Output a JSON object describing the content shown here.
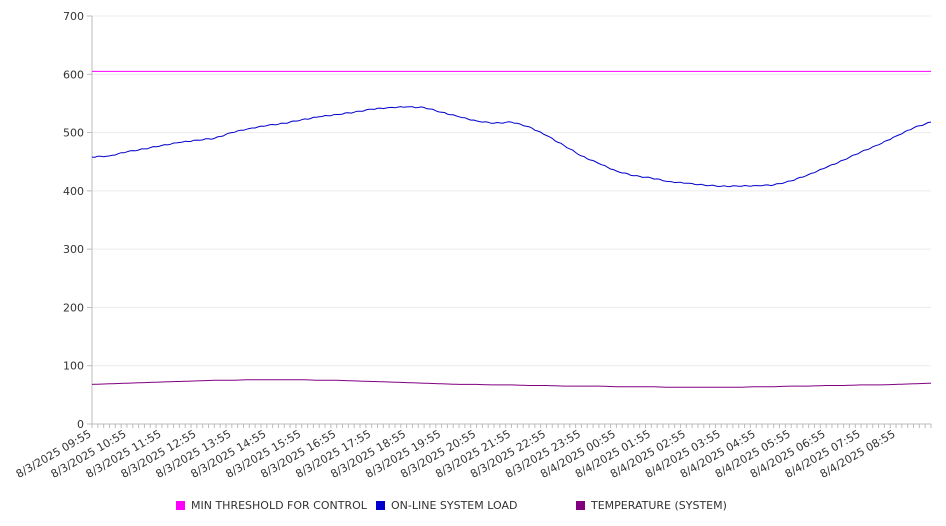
{
  "chart_data": {
    "type": "line",
    "x_tick_labels": [
      "8/3/2025 09:55",
      "8/3/2025 10:55",
      "8/3/2025 11:55",
      "8/3/2025 12:55",
      "8/3/2025 13:55",
      "8/3/2025 14:55",
      "8/3/2025 15:55",
      "8/3/2025 16:55",
      "8/3/2025 17:55",
      "8/3/2025 18:55",
      "8/3/2025 19:55",
      "8/3/2025 20:55",
      "8/3/2025 21:55",
      "8/3/2025 22:55",
      "8/3/2025 23:55",
      "8/4/2025 00:55",
      "8/4/2025 01:55",
      "8/4/2025 02:55",
      "8/4/2025 03:55",
      "8/4/2025 04:55",
      "8/4/2025 05:55",
      "8/4/2025 06:55",
      "8/4/2025 07:55",
      "8/4/2025 08:55"
    ],
    "x_hours": [
      0,
      0.5,
      1,
      1.5,
      2,
      2.5,
      3,
      3.5,
      4,
      4.5,
      5,
      5.5,
      6,
      6.5,
      7,
      7.5,
      8,
      8.5,
      9,
      9.5,
      10,
      10.5,
      11,
      11.5,
      12,
      12.5,
      13,
      13.5,
      14,
      14.5,
      15,
      15.5,
      16,
      16.5,
      17,
      17.5,
      18,
      18.5,
      19,
      19.5,
      20,
      20.5,
      21,
      21.5,
      22,
      22.5,
      23,
      23.5,
      24
    ],
    "ylim": [
      0,
      700
    ],
    "y_ticks": [
      0,
      100,
      200,
      300,
      400,
      500,
      600,
      700
    ],
    "grid": true,
    "legend_position": "bottom",
    "series": [
      {
        "name": "MIN THRESHOLD FOR CONTROL",
        "color": "#ff00ff",
        "values": [
          605,
          605,
          605,
          605,
          605,
          605,
          605,
          605,
          605,
          605,
          605,
          605,
          605,
          605,
          605,
          605,
          605,
          605,
          605,
          605,
          605,
          605,
          605,
          605,
          605,
          605,
          605,
          605,
          605,
          605,
          605,
          605,
          605,
          605,
          605,
          605,
          605,
          605,
          605,
          605,
          605,
          605,
          605,
          605,
          605,
          605,
          605,
          605,
          605
        ]
      },
      {
        "name": "ON-LINE SYSTEM LOAD",
        "color": "#0000cc",
        "values": [
          458,
          460,
          467,
          472,
          478,
          483,
          487,
          490,
          500,
          507,
          512,
          516,
          522,
          527,
          531,
          535,
          540,
          543,
          544,
          543,
          535,
          527,
          520,
          516,
          518,
          510,
          495,
          478,
          460,
          447,
          434,
          426,
          422,
          416,
          413,
          410,
          408,
          408,
          409,
          410,
          417,
          428,
          440,
          453,
          467,
          479,
          494,
          508,
          518
        ]
      },
      {
        "name": "TEMPERATURE (SYSTEM)",
        "color": "#800080",
        "values": [
          68,
          69,
          70,
          71,
          72,
          73,
          74,
          75,
          75,
          76,
          76,
          76,
          76,
          75,
          75,
          74,
          73,
          72,
          71,
          70,
          69,
          68,
          68,
          67,
          67,
          66,
          66,
          65,
          65,
          65,
          64,
          64,
          64,
          63,
          63,
          63,
          63,
          63,
          64,
          64,
          65,
          65,
          66,
          66,
          67,
          67,
          68,
          69,
          70
        ]
      }
    ]
  }
}
